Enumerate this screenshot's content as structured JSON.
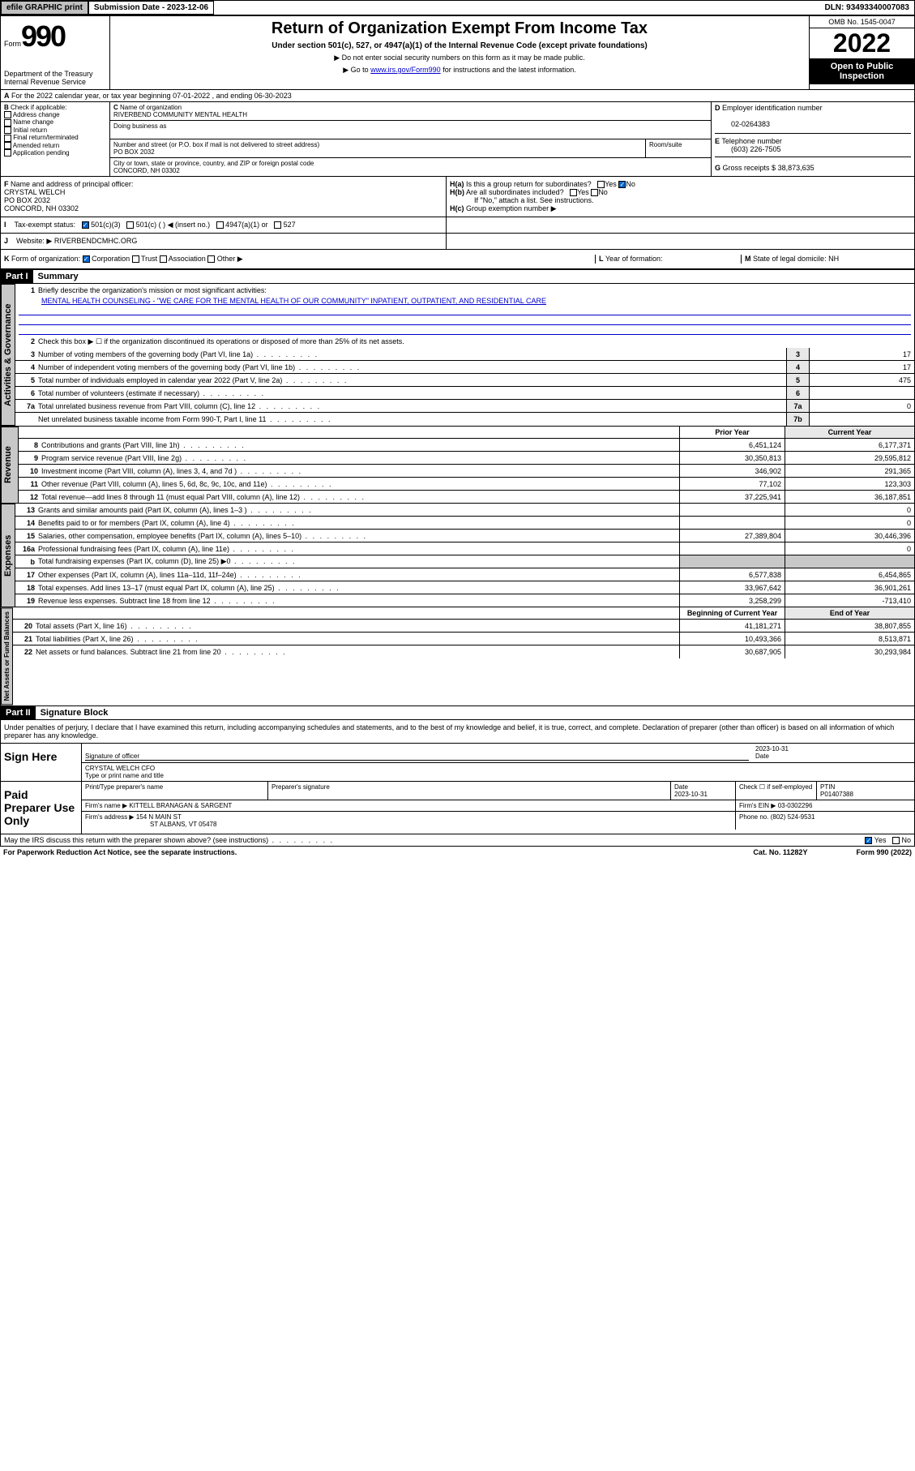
{
  "topbar": {
    "efile": "efile GRAPHIC print",
    "submission_label": "Submission Date - 2023-12-06",
    "dln": "DLN: 93493340007083"
  },
  "header": {
    "form_label": "Form",
    "form_num": "990",
    "dept": "Department of the Treasury Internal Revenue Service",
    "title": "Return of Organization Exempt From Income Tax",
    "subtitle": "Under section 501(c), 527, or 4947(a)(1) of the Internal Revenue Code (except private foundations)",
    "arrow1": "Do not enter social security numbers on this form as it may be made public.",
    "arrow2_pre": "Go to ",
    "arrow2_link": "www.irs.gov/Form990",
    "arrow2_post": " for instructions and the latest information.",
    "omb": "OMB No. 1545-0047",
    "year": "2022",
    "inspect": "Open to Public Inspection"
  },
  "a_row": "For the 2022 calendar year, or tax year beginning 07-01-2022   , and ending 06-30-2023",
  "b": {
    "label": "Check if applicable:",
    "opts": [
      "Address change",
      "Name change",
      "Initial return",
      "Final return/terminated",
      "Amended return",
      "Application pending"
    ]
  },
  "c": {
    "name_label": "Name of organization",
    "name": "RIVERBEND COMMUNITY MENTAL HEALTH",
    "dba_label": "Doing business as",
    "street_label": "Number and street (or P.O. box if mail is not delivered to street address)",
    "room_label": "Room/suite",
    "street": "PO BOX 2032",
    "city_label": "City or town, state or province, country, and ZIP or foreign postal code",
    "city": "CONCORD, NH  03302"
  },
  "d": {
    "label": "Employer identification number",
    "val": "02-0264383"
  },
  "e": {
    "label": "Telephone number",
    "val": "(603) 226-7505"
  },
  "g": {
    "label": "Gross receipts $",
    "val": "38,873,635"
  },
  "f": {
    "label": "Name and address of principal officer:",
    "name": "CRYSTAL WELCH",
    "addr1": "PO BOX 2032",
    "addr2": "CONCORD, NH  03302"
  },
  "h": {
    "a_label": "Is this a group return for subordinates?",
    "b_label": "Are all subordinates included?",
    "yes": "Yes",
    "no": "No",
    "note": "If \"No,\" attach a list. See instructions.",
    "c_label": "Group exemption number ▶"
  },
  "i": {
    "label": "Tax-exempt status:",
    "opt1": "501(c)(3)",
    "opt2": "501(c) (  ) ◀ (insert no.)",
    "opt3": "4947(a)(1) or",
    "opt4": "527"
  },
  "j": {
    "label": "Website: ▶",
    "val": "RIVERBENDCMHC.ORG"
  },
  "k": {
    "label": "Form of organization:",
    "opts": [
      "Corporation",
      "Trust",
      "Association",
      "Other ▶"
    ],
    "l_label": "Year of formation:",
    "m_label": "State of legal domicile: NH"
  },
  "part1": {
    "num": "Part I",
    "title": "Summary"
  },
  "gov": {
    "tab": "Activities & Governance",
    "l1": "Briefly describe the organization's mission or most significant activities:",
    "l1val": "MENTAL HEALTH COUNSELING - \"WE CARE FOR THE MENTAL HEALTH OF OUR COMMUNITY\" INPATIENT, OUTPATIENT, AND RESIDENTIAL CARE",
    "l2": "Check this box ▶ ☐  if the organization discontinued its operations or disposed of more than 25% of its net assets.",
    "l3": "Number of voting members of the governing body (Part VI, line 1a)",
    "l3v": "17",
    "l4": "Number of independent voting members of the governing body (Part VI, line 1b)",
    "l4v": "17",
    "l5": "Total number of individuals employed in calendar year 2022 (Part V, line 2a)",
    "l5v": "475",
    "l6": "Total number of volunteers (estimate if necessary)",
    "l6v": "",
    "l7a": "Total unrelated business revenue from Part VIII, column (C), line 12",
    "l7av": "0",
    "l7b": "Net unrelated business taxable income from Form 990-T, Part I, line 11",
    "l7bv": ""
  },
  "colhdrs": {
    "prior": "Prior Year",
    "current": "Current Year"
  },
  "rev": {
    "tab": "Revenue",
    "rows": [
      {
        "n": "8",
        "t": "Contributions and grants (Part VIII, line 1h)",
        "p": "6,451,124",
        "c": "6,177,371"
      },
      {
        "n": "9",
        "t": "Program service revenue (Part VIII, line 2g)",
        "p": "30,350,813",
        "c": "29,595,812"
      },
      {
        "n": "10",
        "t": "Investment income (Part VIII, column (A), lines 3, 4, and 7d )",
        "p": "346,902",
        "c": "291,365"
      },
      {
        "n": "11",
        "t": "Other revenue (Part VIII, column (A), lines 5, 6d, 8c, 9c, 10c, and 11e)",
        "p": "77,102",
        "c": "123,303"
      },
      {
        "n": "12",
        "t": "Total revenue—add lines 8 through 11 (must equal Part VIII, column (A), line 12)",
        "p": "37,225,941",
        "c": "36,187,851"
      }
    ]
  },
  "exp": {
    "tab": "Expenses",
    "rows": [
      {
        "n": "13",
        "t": "Grants and similar amounts paid (Part IX, column (A), lines 1–3 )",
        "p": "",
        "c": "0"
      },
      {
        "n": "14",
        "t": "Benefits paid to or for members (Part IX, column (A), line 4)",
        "p": "",
        "c": "0"
      },
      {
        "n": "15",
        "t": "Salaries, other compensation, employee benefits (Part IX, column (A), lines 5–10)",
        "p": "27,389,804",
        "c": "30,446,396"
      },
      {
        "n": "16a",
        "t": "Professional fundraising fees (Part IX, column (A), line 11e)",
        "p": "",
        "c": "0"
      },
      {
        "n": "b",
        "t": "Total fundraising expenses (Part IX, column (D), line 25) ▶0",
        "p": "GRAY",
        "c": "GRAY"
      },
      {
        "n": "17",
        "t": "Other expenses (Part IX, column (A), lines 11a–11d, 11f–24e)",
        "p": "6,577,838",
        "c": "6,454,865"
      },
      {
        "n": "18",
        "t": "Total expenses. Add lines 13–17 (must equal Part IX, column (A), line 25)",
        "p": "33,967,642",
        "c": "36,901,261"
      },
      {
        "n": "19",
        "t": "Revenue less expenses. Subtract line 18 from line 12",
        "p": "3,258,299",
        "c": "-713,410"
      }
    ]
  },
  "net": {
    "tab": "Net Assets or Fund Balances",
    "hdr_l": "Beginning of Current Year",
    "hdr_r": "End of Year",
    "rows": [
      {
        "n": "20",
        "t": "Total assets (Part X, line 16)",
        "p": "41,181,271",
        "c": "38,807,855"
      },
      {
        "n": "21",
        "t": "Total liabilities (Part X, line 26)",
        "p": "10,493,366",
        "c": "8,513,871"
      },
      {
        "n": "22",
        "t": "Net assets or fund balances. Subtract line 21 from line 20",
        "p": "30,687,905",
        "c": "30,293,984"
      }
    ]
  },
  "part2": {
    "num": "Part II",
    "title": "Signature Block"
  },
  "sig": {
    "decl": "Under penalties of perjury, I declare that I have examined this return, including accompanying schedules and statements, and to the best of my knowledge and belief, it is true, correct, and complete. Declaration of preparer (other than officer) is based on all information of which preparer has any knowledge.",
    "sign_here": "Sign Here",
    "sig_officer": "Signature of officer",
    "date": "Date",
    "date_val": "2023-10-31",
    "name": "CRYSTAL WELCH CFO",
    "name_label": "Type or print name and title"
  },
  "paid": {
    "label": "Paid Preparer Use Only",
    "print_name": "Print/Type preparer's name",
    "prep_sig": "Preparer's signature",
    "date_l": "Date",
    "date_v": "2023-10-31",
    "check_l": "Check ☐ if self-employed",
    "ptin_l": "PTIN",
    "ptin_v": "P01407388",
    "firm_name_l": "Firm's name   ▶",
    "firm_name": "KITTELL BRANAGAN & SARGENT",
    "firm_ein_l": "Firm's EIN ▶",
    "firm_ein": "03-0302296",
    "firm_addr_l": "Firm's address ▶",
    "firm_addr": "154 N MAIN ST",
    "firm_addr2": "ST ALBANS, VT  05478",
    "phone_l": "Phone no.",
    "phone": "(802) 524-9531"
  },
  "footer": {
    "irs_q": "May the IRS discuss this return with the preparer shown above? (see instructions)",
    "yes": "Yes",
    "no": "No",
    "paperwork": "For Paperwork Reduction Act Notice, see the separate instructions.",
    "cat": "Cat. No. 11282Y",
    "form": "Form 990 (2022)"
  }
}
